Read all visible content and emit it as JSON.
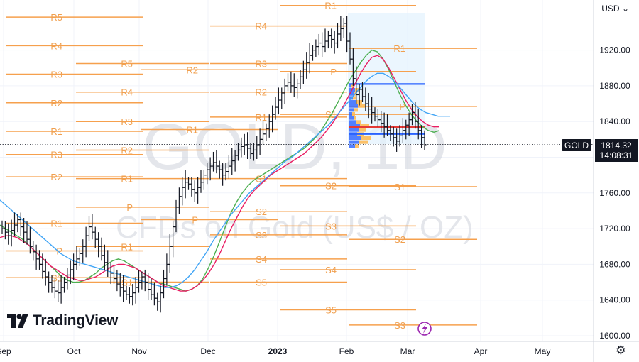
{
  "header": {
    "currency": "USD",
    "currency_icon": "chevron-down-icon"
  },
  "footer": {
    "settings_icon": "gear-icon"
  },
  "brand": {
    "logo_text": "TradingView",
    "logo_icon": "tradingview-logo-icon"
  },
  "watermark": {
    "symbol": "GOLD, 1D",
    "description": "CFDs on Gold (US$ / OZ)"
  },
  "price_badge": {
    "symbol": "GOLD",
    "price": "1814.32",
    "countdown": "14:08:31",
    "price_value": 1814.32
  },
  "chart_data": {
    "type": "candlestick",
    "instrument": "GOLD",
    "timeframe": "1D",
    "x_ticks": [
      "Sep",
      "Oct",
      "Nov",
      "Dec",
      "2023",
      "Feb",
      "Mar",
      "Apr",
      "May"
    ],
    "y_ticks": [
      "1920.00",
      "1880.00",
      "1840.00",
      "1800.00",
      "1760.00",
      "1720.00",
      "1680.00",
      "1640.00",
      "1600.00"
    ],
    "y_tick_values": [
      1920,
      1880,
      1840,
      1800,
      1760,
      1720,
      1680,
      1640,
      1600
    ],
    "ylim": [
      1592,
      1968
    ],
    "last_price": 1814.32,
    "closes_approx": [
      1720,
      1716,
      1712,
      1718,
      1724,
      1730,
      1722,
      1716,
      1708,
      1700,
      1694,
      1686,
      1680,
      1672,
      1666,
      1660,
      1654,
      1650,
      1648,
      1654,
      1660,
      1668,
      1674,
      1680,
      1686,
      1692,
      1700,
      1712,
      1722,
      1716,
      1708,
      1700,
      1690,
      1682,
      1676,
      1670,
      1664,
      1658,
      1654,
      1650,
      1646,
      1644,
      1648,
      1654,
      1660,
      1666,
      1660,
      1652,
      1646,
      1642,
      1638,
      1648,
      1664,
      1680,
      1700,
      1722,
      1744,
      1756,
      1766,
      1772,
      1770,
      1764,
      1760,
      1766,
      1772,
      1780,
      1786,
      1790,
      1794,
      1790,
      1786,
      1780,
      1784,
      1790,
      1796,
      1802,
      1808,
      1812,
      1814,
      1810,
      1804,
      1808,
      1814,
      1820,
      1826,
      1832,
      1840,
      1848,
      1856,
      1864,
      1872,
      1880,
      1884,
      1880,
      1878,
      1882,
      1890,
      1898,
      1906,
      1914,
      1920,
      1924,
      1928,
      1924,
      1930,
      1936,
      1932,
      1928,
      1938,
      1944,
      1950,
      1930,
      1910,
      1888,
      1870,
      1876,
      1868,
      1860,
      1854,
      1850,
      1846,
      1842,
      1838,
      1834,
      1830,
      1826,
      1822,
      1818,
      1824,
      1830,
      1836,
      1842,
      1850,
      1840,
      1830,
      1822,
      1814
    ],
    "moving_averages": [
      {
        "color": "#4caf50",
        "values": [
          1724,
          1720,
          1716,
          1712,
          1708,
          1702,
          1696,
          1690,
          1684,
          1678,
          1672,
          1666,
          1662,
          1660,
          1660,
          1662,
          1666,
          1670,
          1676,
          1680,
          1684,
          1686,
          1684,
          1680,
          1676,
          1672,
          1668,
          1664,
          1660,
          1658,
          1656,
          1654,
          1652,
          1650,
          1652,
          1656,
          1664,
          1676,
          1690,
          1706,
          1722,
          1738,
          1750,
          1760,
          1768,
          1774,
          1778,
          1782,
          1786,
          1790,
          1794,
          1798,
          1802,
          1806,
          1810,
          1816,
          1822,
          1830,
          1840,
          1850,
          1862,
          1874,
          1886,
          1896,
          1906,
          1914,
          1920,
          1918,
          1910,
          1898,
          1884,
          1870,
          1858,
          1848,
          1840,
          1834,
          1830,
          1828,
          1830
        ]
      },
      {
        "color": "#e91e63",
        "values": [
          1710,
          1712,
          1712,
          1710,
          1706,
          1702,
          1696,
          1690,
          1684,
          1678,
          1674,
          1670,
          1666,
          1664,
          1662,
          1662,
          1664,
          1666,
          1670,
          1674,
          1678,
          1680,
          1680,
          1678,
          1676,
          1672,
          1668,
          1664,
          1660,
          1656,
          1654,
          1652,
          1650,
          1650,
          1652,
          1656,
          1662,
          1670,
          1680,
          1692,
          1706,
          1720,
          1732,
          1744,
          1754,
          1762,
          1768,
          1774,
          1780,
          1784,
          1788,
          1792,
          1796,
          1800,
          1804,
          1810,
          1816,
          1822,
          1830,
          1838,
          1848,
          1858,
          1870,
          1882,
          1894,
          1904,
          1912,
          1914,
          1910,
          1900,
          1888,
          1876,
          1864,
          1854,
          1846,
          1840,
          1836,
          1834,
          1834
        ]
      },
      {
        "color": "#42a5f5",
        "values": [
          1752,
          1746,
          1740,
          1734,
          1728,
          1722,
          1716,
          1710,
          1704,
          1698,
          1692,
          1688,
          1684,
          1682,
          1680,
          1678,
          1676,
          1674,
          1672,
          1670,
          1668,
          1666,
          1664,
          1662,
          1660,
          1658,
          1656,
          1654,
          1654,
          1656,
          1660,
          1666,
          1674,
          1684,
          1694,
          1706,
          1716,
          1726,
          1736,
          1744,
          1752,
          1760,
          1766,
          1772,
          1778,
          1784,
          1790,
          1796,
          1800,
          1806,
          1812,
          1818,
          1824,
          1830,
          1836,
          1844,
          1852,
          1860,
          1868,
          1876,
          1884,
          1890,
          1894,
          1894,
          1890,
          1884,
          1876,
          1868,
          1860,
          1854,
          1850,
          1848,
          1846,
          1846,
          1846
        ]
      }
    ],
    "volume_profile": {
      "poc": 1834,
      "high": 1882,
      "low": 1826
    },
    "pivot_levels": [
      {
        "label": "R5",
        "value": 1957
      },
      {
        "label": "R4",
        "value": 1925
      },
      {
        "label": "R3",
        "value": 1893
      },
      {
        "label": "R2",
        "value": 1861
      },
      {
        "label": "R1",
        "value": 1829
      },
      {
        "label": "R3",
        "value": 1803
      },
      {
        "label": "R2",
        "value": 1778
      },
      {
        "label": "R1",
        "value": 1726
      },
      {
        "label": "P",
        "value": 1695
      },
      {
        "label": "S1",
        "value": 1665
      },
      {
        "label": "R5",
        "value": 1905
      },
      {
        "label": "R4",
        "value": 1873
      },
      {
        "label": "R3",
        "value": 1840
      },
      {
        "label": "R2",
        "value": 1808
      },
      {
        "label": "R1",
        "value": 1776
      },
      {
        "label": "P",
        "value": 1744
      },
      {
        "label": "R1",
        "value": 1700
      },
      {
        "label": "S1",
        "value": 1660
      },
      {
        "label": "R2",
        "value": 1898
      },
      {
        "label": "R1",
        "value": 1831
      },
      {
        "label": "P",
        "value": 1730
      },
      {
        "label": "R4",
        "value": 1947
      },
      {
        "label": "R3",
        "value": 1905
      },
      {
        "label": "R2",
        "value": 1873
      },
      {
        "label": "R1",
        "value": 1845
      },
      {
        "label": "S1",
        "value": 1776
      },
      {
        "label": "S2",
        "value": 1739
      },
      {
        "label": "S3",
        "value": 1713
      },
      {
        "label": "S4",
        "value": 1686
      },
      {
        "label": "S5",
        "value": 1660
      },
      {
        "label": "R1",
        "value": 1970
      },
      {
        "label": "P",
        "value": 1896
      },
      {
        "label": "S1",
        "value": 1848
      },
      {
        "label": "S2",
        "value": 1768
      },
      {
        "label": "S3",
        "value": 1723
      },
      {
        "label": "S4",
        "value": 1674
      },
      {
        "label": "S5",
        "value": 1629
      },
      {
        "label": "R1",
        "value": 1922
      },
      {
        "label": "P",
        "value": 1857
      },
      {
        "label": "S1",
        "value": 1767
      },
      {
        "label": "S2",
        "value": 1708
      },
      {
        "label": "S3",
        "value": 1612
      }
    ]
  }
}
